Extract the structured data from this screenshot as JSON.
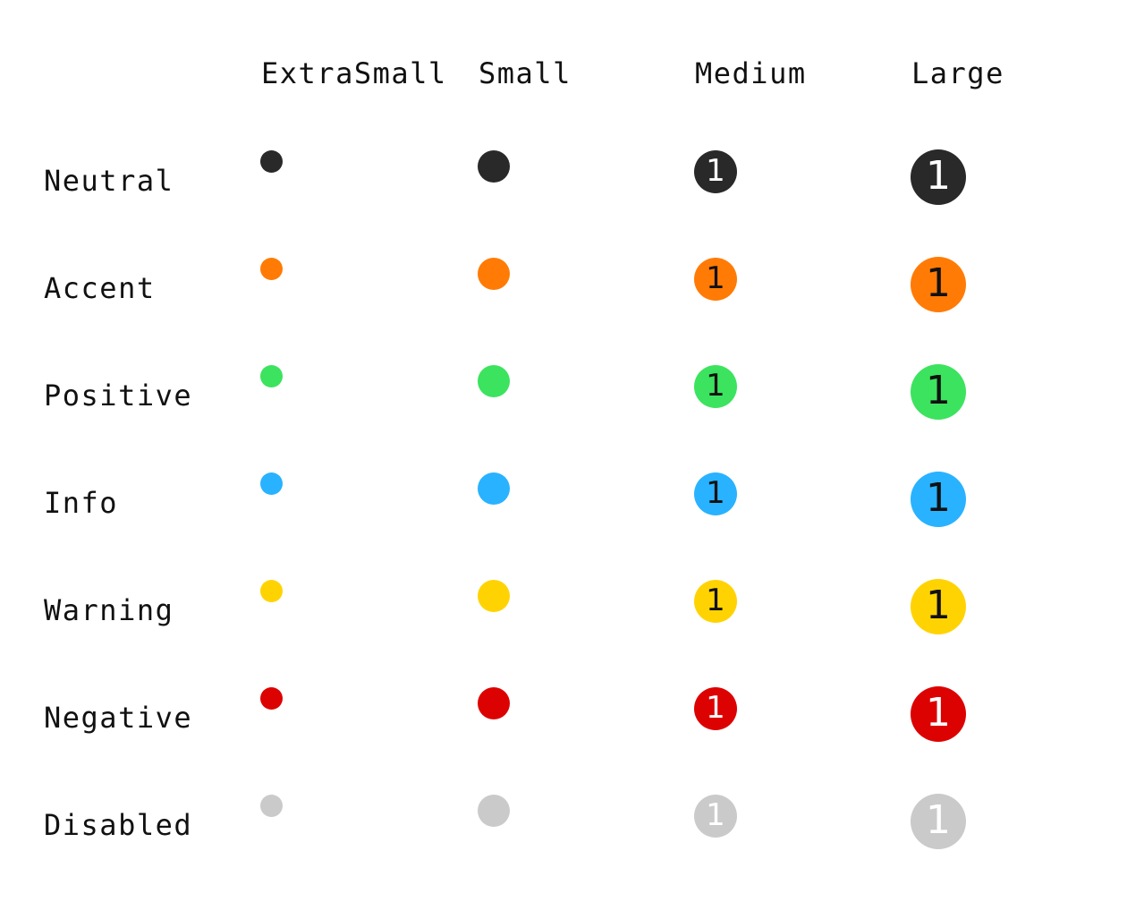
{
  "columns": [
    {
      "key": "xs",
      "label": "ExtraSmall"
    },
    {
      "key": "sm",
      "label": "Small"
    },
    {
      "key": "md",
      "label": "Medium"
    },
    {
      "key": "lg",
      "label": "Large"
    }
  ],
  "rows": [
    {
      "name": "neutral",
      "label": "Neutral",
      "color": "#292929",
      "text_color": "#ffffff"
    },
    {
      "name": "accent",
      "label": "Accent",
      "color": "#ff7b05",
      "text_color": "#111111"
    },
    {
      "name": "positive",
      "label": "Positive",
      "color": "#3ce35e",
      "text_color": "#111111"
    },
    {
      "name": "info",
      "label": "Info",
      "color": "#29b2ff",
      "text_color": "#111111"
    },
    {
      "name": "warning",
      "label": "Warning",
      "color": "#ffd302",
      "text_color": "#111111"
    },
    {
      "name": "negative",
      "label": "Negative",
      "color": "#dd0202",
      "text_color": "#ffffff"
    },
    {
      "name": "disabled",
      "label": "Disabled",
      "color": "#cacaca",
      "text_color": "#ffffff"
    }
  ],
  "badge_count": "1"
}
